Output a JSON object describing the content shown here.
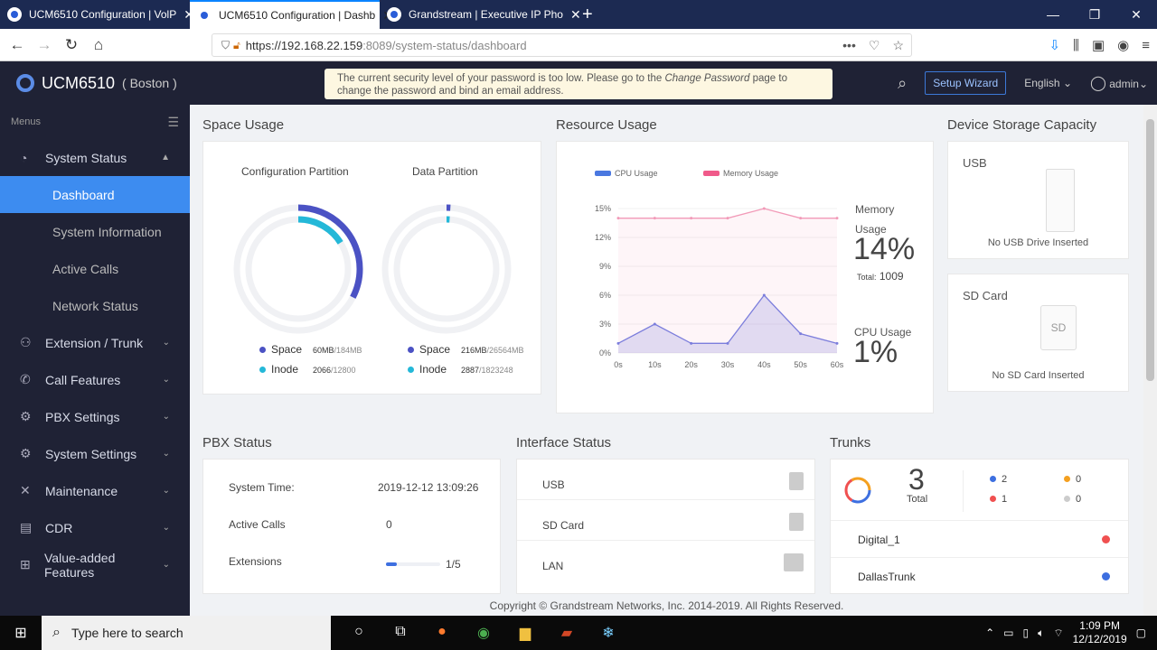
{
  "browser": {
    "tabs": [
      {
        "title": "UCM6510 Configuration | VolP"
      },
      {
        "title": "UCM6510 Configuration | Dashb"
      },
      {
        "title": "Grandstream | Executive IP Pho"
      }
    ],
    "url_host": "https://192.168.22.159",
    "url_rest": ":8089/system-status/dashboard"
  },
  "header": {
    "product": "UCM6510",
    "location": "( Boston )",
    "banner_prefix": "The current security level of your password is too low. Please go to the ",
    "banner_link": "Change Password",
    "banner_suffix": " page to change the password and bind an email address.",
    "setup_wizard": "Setup Wizard",
    "language": "English",
    "user": "admin"
  },
  "sidebar": {
    "menus_label": "Menus",
    "system_status": "System Status",
    "subs": [
      "Dashboard",
      "System Information",
      "Active Calls",
      "Network Status"
    ],
    "items": [
      "Extension / Trunk",
      "Call Features",
      "PBX Settings",
      "System Settings",
      "Maintenance",
      "CDR",
      "Value-added Features"
    ]
  },
  "space": {
    "title": "Space Usage",
    "config_title": "Configuration Partition",
    "data_title": "Data Partition",
    "space_label": "Space",
    "inode_label": "Inode",
    "config_space_used": "60MB",
    "config_space_total": "/184MB",
    "config_inode_used": "2066",
    "config_inode_total": "/12800",
    "data_space_used": "216MB",
    "data_space_total": "/26564MB",
    "data_inode_used": "2887",
    "data_inode_total": "/1823248",
    "config_space_frac": 0.326,
    "config_inode_frac": 0.161,
    "data_space_frac": 0.008,
    "data_inode_frac": 0.0016
  },
  "resource": {
    "title": "Resource Usage",
    "cpu_legend": "CPU Usage",
    "mem_legend": "Memory Usage",
    "memory_label_1": "Memory",
    "memory_label_2": "Usage",
    "memory_value": "14%",
    "total_label": "Total:",
    "total_value": "1009",
    "cpu_label": "CPU Usage",
    "cpu_value": "1%"
  },
  "chart_data": {
    "type": "area",
    "x": [
      "0s",
      "10s",
      "20s",
      "30s",
      "40s",
      "50s",
      "60s"
    ],
    "yticks": [
      "0%",
      "3%",
      "6%",
      "9%",
      "12%",
      "15%"
    ],
    "ylim": [
      0,
      15
    ],
    "series": [
      {
        "name": "CPU Usage",
        "values": [
          1,
          3,
          1,
          1,
          6,
          2,
          1
        ]
      },
      {
        "name": "Memory Usage",
        "values": [
          14,
          14,
          14,
          14,
          15,
          14,
          14
        ]
      }
    ]
  },
  "storage": {
    "title": "Device Storage Capacity",
    "usb_label": "USB",
    "usb_status": "No USB Drive Inserted",
    "sd_label": "SD Card",
    "sd_icon_text": "SD",
    "sd_status": "No SD Card Inserted"
  },
  "pbx": {
    "title": "PBX Status",
    "time_label": "System Time:",
    "time_value": "2019-12-12 13:09:26",
    "calls_label": "Active Calls",
    "calls_value": "0",
    "ext_label": "Extensions",
    "ext_value": "1/5",
    "ext_frac": 0.2
  },
  "iface": {
    "title": "Interface Status",
    "items": [
      "USB",
      "SD Card",
      "LAN"
    ]
  },
  "trunks": {
    "title": "Trunks",
    "total_value": "3",
    "total_label": "Total",
    "counts": [
      "2",
      "0",
      "1",
      "0"
    ],
    "rows": [
      "Digital_1",
      "DallasTrunk"
    ]
  },
  "footer": "Copyright © Grandstream Networks, Inc. 2014-2019. All Rights Reserved.",
  "taskbar": {
    "search": "Type here to search",
    "time": "1:09 PM",
    "date": "12/12/2019"
  }
}
